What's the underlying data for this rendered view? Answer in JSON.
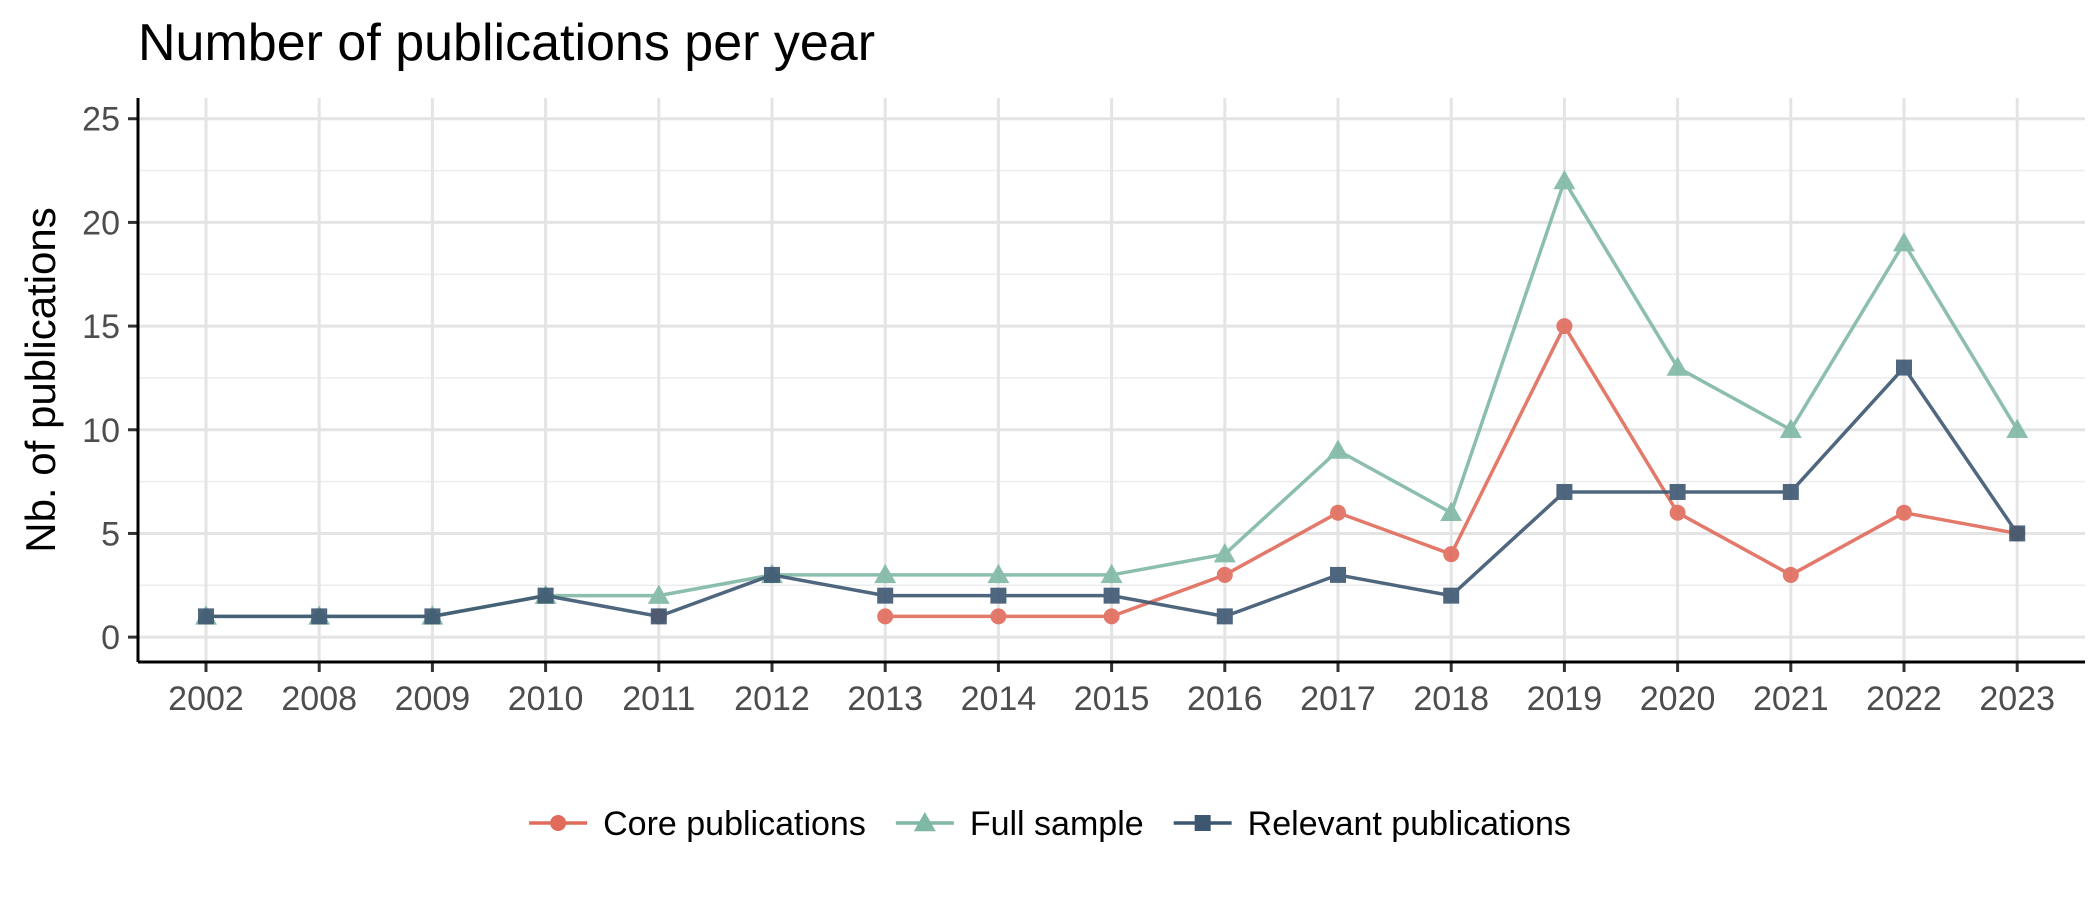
{
  "chart_data": {
    "type": "line",
    "title": "Number of publications per year",
    "xlabel": "",
    "ylabel": "Nb. of publications",
    "categories": [
      "2002",
      "2008",
      "2009",
      "2010",
      "2011",
      "2012",
      "2013",
      "2014",
      "2015",
      "2016",
      "2017",
      "2018",
      "2019",
      "2020",
      "2021",
      "2022",
      "2023"
    ],
    "ylim": [
      -1.2,
      26
    ],
    "yticks": [
      0,
      5,
      10,
      15,
      20,
      25
    ],
    "grid": true,
    "legend_position": "bottom",
    "series": [
      {
        "name": "Full sample",
        "color": "#7fb8a4",
        "marker": "triangle",
        "values": [
          1,
          1,
          1,
          2,
          2,
          3,
          3,
          3,
          3,
          4,
          9,
          6,
          22,
          13,
          10,
          19,
          10
        ]
      },
      {
        "name": "Core publications",
        "color": "#e06b5a",
        "marker": "circle",
        "values": [
          null,
          null,
          null,
          null,
          1,
          null,
          1,
          1,
          1,
          3,
          6,
          4,
          15,
          6,
          3,
          6,
          5
        ]
      },
      {
        "name": "Relevant publications",
        "color": "#3d5771",
        "marker": "square",
        "values": [
          1,
          1,
          1,
          2,
          1,
          3,
          2,
          2,
          2,
          1,
          3,
          2,
          7,
          7,
          7,
          13,
          5
        ]
      }
    ],
    "legend_order": [
      "Core publications",
      "Full sample",
      "Relevant publications"
    ]
  }
}
